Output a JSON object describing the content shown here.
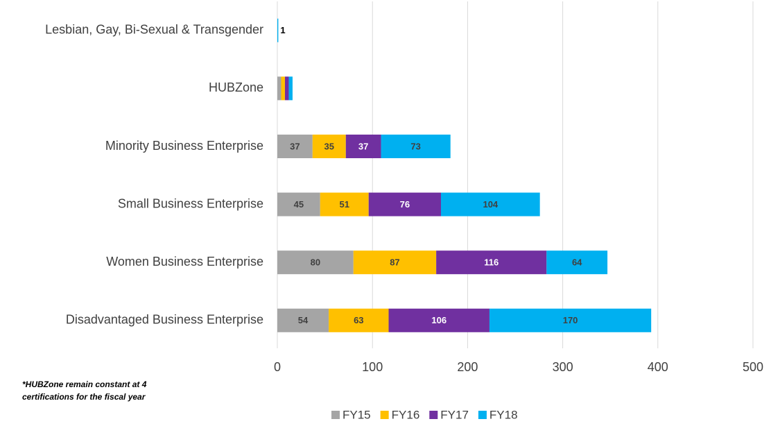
{
  "chart_data": {
    "type": "stacked_barh",
    "categories": [
      "Lesbian, Gay, Bi-Sexual & Transgender",
      "HUBZone",
      "Minority Business Enterprise",
      "Small Business Enterprise",
      "Women Business Enterprise",
      "Disadvantaged Business Enterprise"
    ],
    "series": [
      {
        "name": "FY15",
        "color": "#a5a5a5",
        "values": [
          null,
          4,
          37,
          45,
          80,
          54
        ],
        "value_labels": [
          null,
          null,
          "37",
          "45",
          "80",
          "54"
        ]
      },
      {
        "name": "FY16",
        "color": "#ffc000",
        "values": [
          null,
          4,
          35,
          51,
          87,
          63
        ],
        "value_labels": [
          null,
          null,
          "35",
          "51",
          "87",
          "63"
        ]
      },
      {
        "name": "FY17",
        "color": "#7030a0",
        "values": [
          null,
          4,
          37,
          76,
          116,
          106
        ],
        "value_labels": [
          null,
          null,
          "37",
          "76",
          "116",
          "106"
        ]
      },
      {
        "name": "FY18",
        "color": "#00b0f0",
        "values": [
          1,
          4,
          73,
          104,
          64,
          170
        ],
        "value_labels": [
          "1",
          null,
          "73",
          "104",
          "64",
          "170"
        ]
      }
    ],
    "xlim": [
      0,
      500
    ],
    "xticks": [
      0,
      100,
      200,
      300,
      400,
      500
    ],
    "grid": true,
    "legend": "bottom",
    "note": [
      "*HUBZone remain constant at 4",
      "certifications for the fiscal year"
    ]
  }
}
